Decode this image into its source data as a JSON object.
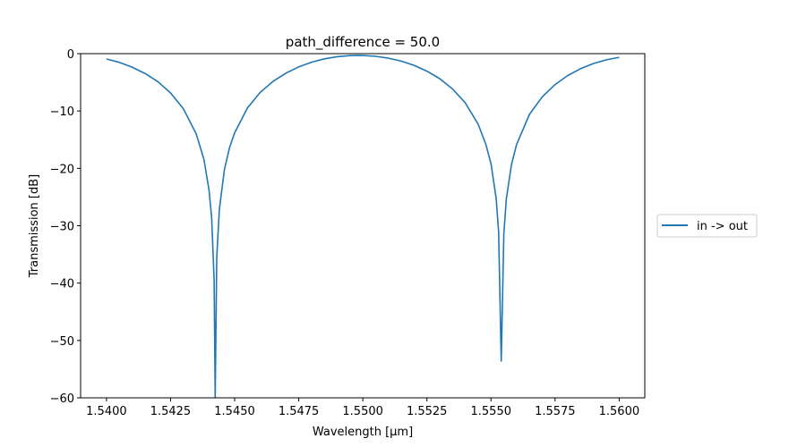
{
  "chart_data": {
    "type": "line",
    "title": "path_difference = 50.0",
    "xlabel": "Wavelength [μm]",
    "ylabel": "Transmission [dB]",
    "xlim": [
      1.53899,
      1.561
    ],
    "ylim": [
      -60,
      0
    ],
    "grid": false,
    "legend_placement": "center-right-outside",
    "xticks": [
      1.54,
      1.5425,
      1.545,
      1.5475,
      1.55,
      1.5525,
      1.555,
      1.5575,
      1.56
    ],
    "xtick_labels": [
      "1.5400",
      "1.5425",
      "1.5450",
      "1.5475",
      "1.5500",
      "1.5525",
      "1.5550",
      "1.5575",
      "1.5600"
    ],
    "yticks": [
      0,
      -10,
      -20,
      -30,
      -40,
      -50,
      -60
    ],
    "ytick_labels": [
      "0",
      "−10",
      "−20",
      "−30",
      "−40",
      "−50",
      "−60"
    ],
    "series": [
      {
        "name": "in -> out",
        "color": "#1f77b4",
        "x": [
          1.54,
          1.5405,
          1.541,
          1.5415,
          1.542,
          1.5425,
          1.543,
          1.5435,
          1.5438,
          1.544,
          1.5441,
          1.5442,
          1.54424,
          1.5443,
          1.5444,
          1.5446,
          1.5448,
          1.545,
          1.5455,
          1.546,
          1.5465,
          1.547,
          1.5475,
          1.548,
          1.5485,
          1.549,
          1.5495,
          1.5498,
          1.55,
          1.5505,
          1.551,
          1.5515,
          1.552,
          1.5525,
          1.553,
          1.5535,
          1.554,
          1.5545,
          1.5548,
          1.555,
          1.5552,
          1.5553,
          1.5554,
          1.5555,
          1.5556,
          1.5558,
          1.556,
          1.5565,
          1.557,
          1.5575,
          1.558,
          1.5585,
          1.559,
          1.5595,
          1.56
        ],
        "y": [
          -0.94,
          -1.51,
          -2.35,
          -3.44,
          -4.88,
          -6.86,
          -9.62,
          -14.0,
          -18.4,
          -23.8,
          -28.5,
          -39.5,
          -75,
          -35.7,
          -27.2,
          -20.2,
          -16.4,
          -13.8,
          -9.47,
          -6.75,
          -4.82,
          -3.39,
          -2.3,
          -1.49,
          -0.91,
          -0.53,
          -0.34,
          -0.3,
          -0.32,
          -0.46,
          -0.79,
          -1.31,
          -2.04,
          -3.05,
          -4.37,
          -6.15,
          -8.59,
          -12.3,
          -15.8,
          -19.2,
          -25.2,
          -31.1,
          -53.6,
          -31.4,
          -25.3,
          -19.3,
          -15.8,
          -10.6,
          -7.53,
          -5.4,
          -3.81,
          -2.62,
          -1.72,
          -1.08,
          -0.64
        ]
      }
    ]
  }
}
